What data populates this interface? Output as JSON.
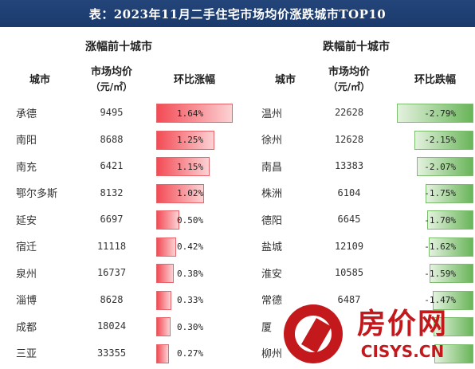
{
  "title": "表：2023年11月二手住宅市场均价涨跌城市TOP10",
  "rise": {
    "section_title": "涨幅前十城市",
    "headers": {
      "city": "城市",
      "price": "市场均价",
      "price_unit": "（元/㎡）",
      "change": "环比涨幅"
    },
    "rows": [
      {
        "city": "承德",
        "price": "9495",
        "change": "1.64%",
        "value": 1.64
      },
      {
        "city": "南阳",
        "price": "8688",
        "change": "1.25%",
        "value": 1.25
      },
      {
        "city": "南充",
        "price": "6421",
        "change": "1.15%",
        "value": 1.15
      },
      {
        "city": "鄂尔多斯",
        "price": "8132",
        "change": "1.02%",
        "value": 1.02
      },
      {
        "city": "延安",
        "price": "6697",
        "change": "0.50%",
        "value": 0.5
      },
      {
        "city": "宿迁",
        "price": "11118",
        "change": "0.42%",
        "value": 0.42
      },
      {
        "city": "泉州",
        "price": "16737",
        "change": "0.38%",
        "value": 0.38
      },
      {
        "city": "淄博",
        "price": "8628",
        "change": "0.33%",
        "value": 0.33
      },
      {
        "city": "成都",
        "price": "18024",
        "change": "0.30%",
        "value": 0.3
      },
      {
        "city": "三亚",
        "price": "33355",
        "change": "0.27%",
        "value": 0.27
      }
    ]
  },
  "fall": {
    "section_title": "跌幅前十城市",
    "headers": {
      "city": "城市",
      "price": "市场均价",
      "price_unit": "（元/㎡）",
      "change": "环比跌幅"
    },
    "rows": [
      {
        "city": "温州",
        "price": "22628",
        "change": "-2.79%",
        "value": -2.79
      },
      {
        "city": "徐州",
        "price": "12628",
        "change": "-2.15%",
        "value": -2.15
      },
      {
        "city": "南昌",
        "price": "13383",
        "change": "-2.07%",
        "value": -2.07
      },
      {
        "city": "株洲",
        "price": "6104",
        "change": "-1.75%",
        "value": -1.75
      },
      {
        "city": "德阳",
        "price": "6645",
        "change": "-1.70%",
        "value": -1.7
      },
      {
        "city": "盐城",
        "price": "12109",
        "change": "-1.62%",
        "value": -1.62
      },
      {
        "city": "淮安",
        "price": "10585",
        "change": "-1.59%",
        "value": -1.59
      },
      {
        "city": "常德",
        "price": "6487",
        "change": "-1.47%",
        "value": -1.47
      },
      {
        "city": "厦",
        "price": "",
        "change": "",
        "value": -1.45
      },
      {
        "city": "柳州",
        "price": "",
        "change": "",
        "value": -1.43
      }
    ]
  },
  "watermark": {
    "brand": "房价网",
    "url": "CISYS.CN"
  },
  "colors": {
    "title_bg": "#1a3a6c",
    "rise_bar": "#f34b55",
    "fall_bar": "#69b559",
    "logo": "#c4191c"
  }
}
